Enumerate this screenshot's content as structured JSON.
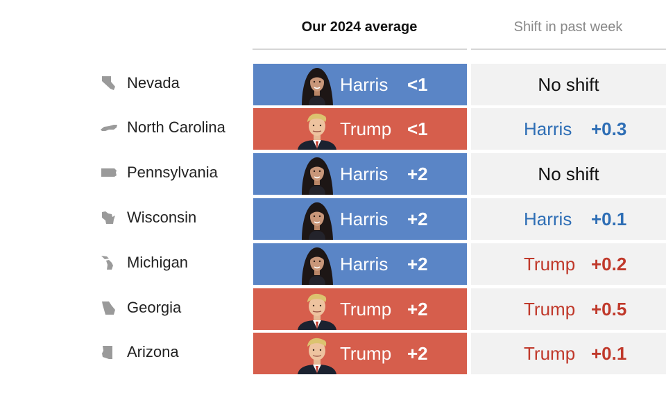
{
  "chart_data": {
    "type": "table",
    "columns": {
      "average": "Our 2024 average",
      "shift": "Shift in past week"
    },
    "rows": [
      {
        "state": "Nevada",
        "leader": "Harris",
        "margin": "<1",
        "shift_cand": null,
        "shift_value": null,
        "shift_text": "No shift"
      },
      {
        "state": "North Carolina",
        "leader": "Trump",
        "margin": "<1",
        "shift_cand": "Harris",
        "shift_value": "+0.3",
        "shift_text": null
      },
      {
        "state": "Pennsylvania",
        "leader": "Harris",
        "margin": "+2",
        "shift_cand": null,
        "shift_value": null,
        "shift_text": "No shift"
      },
      {
        "state": "Wisconsin",
        "leader": "Harris",
        "margin": "+2",
        "shift_cand": "Harris",
        "shift_value": "+0.1",
        "shift_text": null
      },
      {
        "state": "Michigan",
        "leader": "Harris",
        "margin": "+2",
        "shift_cand": "Trump",
        "shift_value": "+0.2",
        "shift_text": null
      },
      {
        "state": "Georgia",
        "leader": "Trump",
        "margin": "+2",
        "shift_cand": "Trump",
        "shift_value": "+0.5",
        "shift_text": null
      },
      {
        "state": "Arizona",
        "leader": "Trump",
        "margin": "+2",
        "shift_cand": "Trump",
        "shift_value": "+0.1",
        "shift_text": null
      }
    ]
  },
  "colors": {
    "harris_fill": "#5a85c6",
    "trump_fill": "#d65e4c",
    "harris_text": "#2e6eb5",
    "trump_text": "#c0392b",
    "state_icon": "#9a9a9a"
  },
  "icons": {
    "Nevada": "nevada-outline-icon",
    "North Carolina": "north-carolina-outline-icon",
    "Pennsylvania": "pennsylvania-outline-icon",
    "Wisconsin": "wisconsin-outline-icon",
    "Michigan": "michigan-outline-icon",
    "Georgia": "georgia-outline-icon",
    "Arizona": "arizona-outline-icon",
    "Harris": "harris-portrait-icon",
    "Trump": "trump-portrait-icon"
  }
}
